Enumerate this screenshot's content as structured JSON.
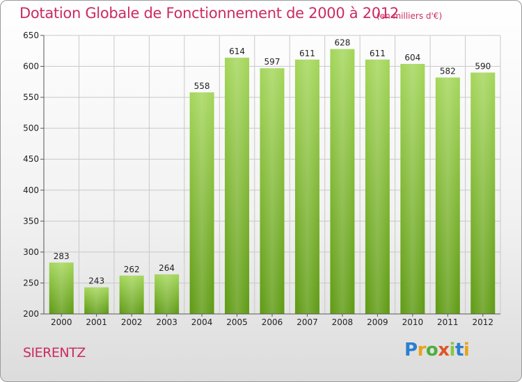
{
  "header": {
    "title": "Dotation Globale de Fonctionnement de 2000 à 2012",
    "unit": "(en milliers d'€)"
  },
  "footer": {
    "city": "SIERENTZ",
    "logo_text": "Proxiti"
  },
  "colors": {
    "title": "#cc2a63",
    "bar_top": "#a4d65a",
    "bar_bottom": "#5e9a12",
    "grid": "#c8c8c8",
    "axis": "#555555"
  },
  "chart_data": {
    "type": "bar",
    "categories": [
      "2000",
      "2001",
      "2002",
      "2003",
      "2004",
      "2005",
      "2006",
      "2007",
      "2008",
      "2009",
      "2010",
      "2011",
      "2012"
    ],
    "values": [
      283,
      243,
      262,
      264,
      558,
      614,
      597,
      611,
      628,
      611,
      604,
      582,
      590
    ],
    "ylim": [
      200,
      650
    ],
    "yticks": [
      200,
      250,
      300,
      350,
      400,
      450,
      500,
      550,
      600,
      650
    ],
    "grid": true,
    "xlabel": "",
    "ylabel": ""
  }
}
